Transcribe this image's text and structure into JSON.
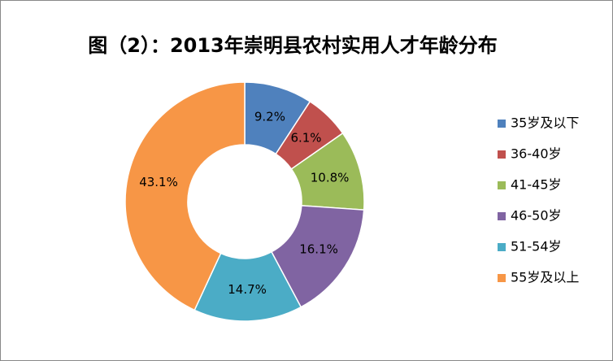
{
  "chart_data": {
    "type": "donut",
    "title": "图（2）：2013年崇明县农村实用人才年龄分布",
    "categories": [
      "35岁及以下",
      "36-40岁",
      "41-45岁",
      "46-50岁",
      "51-54岁",
      "55岁及以上"
    ],
    "values": [
      9.2,
      6.1,
      10.8,
      16.1,
      14.7,
      43.1
    ],
    "value_labels": [
      "9.2%",
      "6.1%",
      "10.8%",
      "16.1%",
      "14.7%",
      "43.1%"
    ],
    "colors": [
      "#4f81bd",
      "#c0504d",
      "#9bbb59",
      "#8064a2",
      "#4bacc6",
      "#f79646"
    ],
    "legend": "right"
  }
}
